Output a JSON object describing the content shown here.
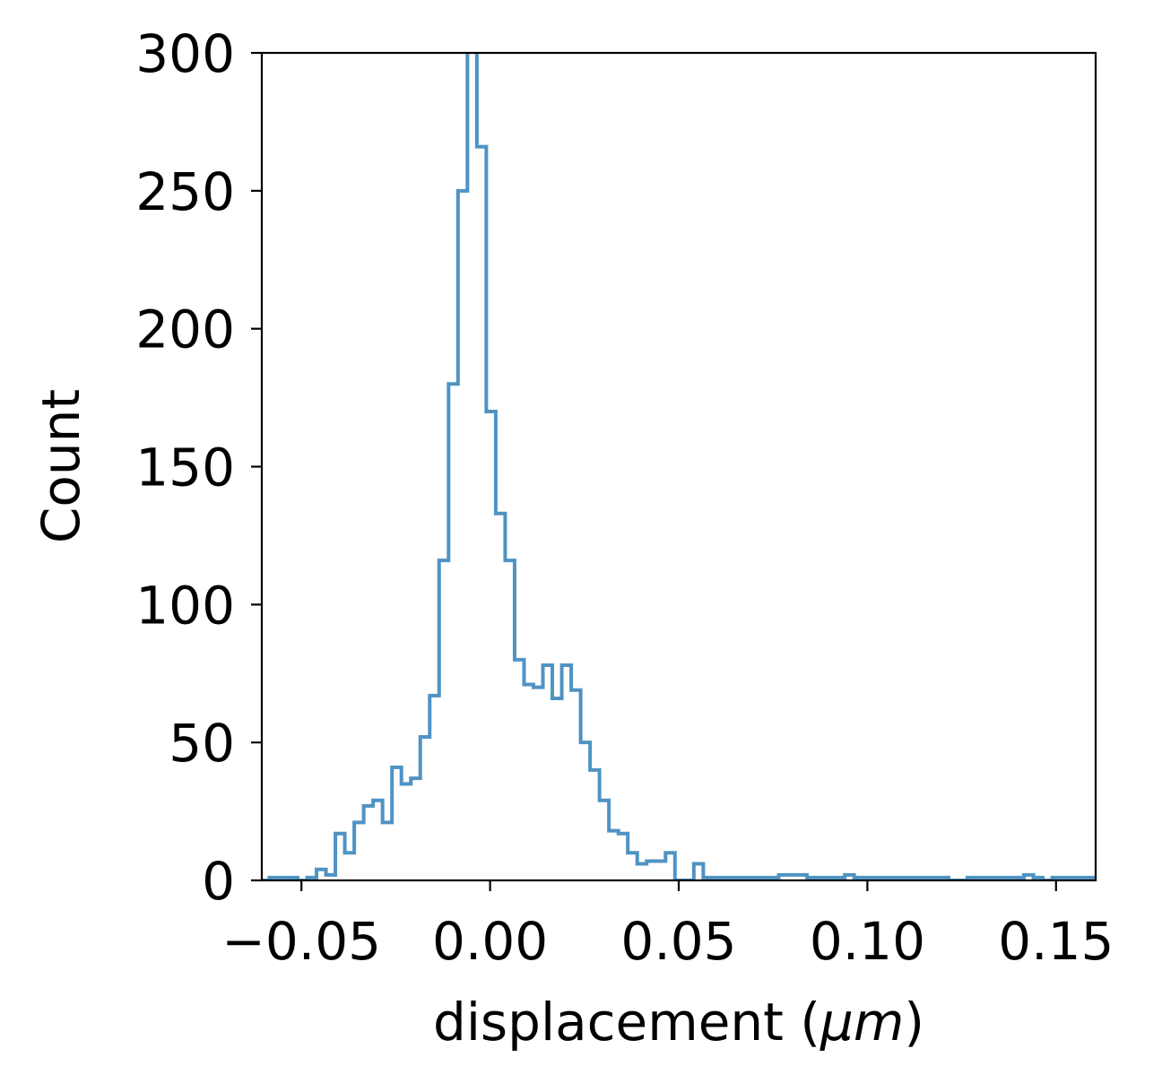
{
  "chart_data": {
    "type": "histogram",
    "histtype": "step",
    "xlabel": "displacement (",
    "xlabel_unit": "μm",
    "xlabel_close": ")",
    "ylabel": "Count",
    "xlim": [
      -0.0605,
      0.1605
    ],
    "ylim": [
      0,
      300
    ],
    "grid": false,
    "legend": null,
    "line_color": "#4f93c3",
    "xticks": [
      {
        "value": -0.05,
        "label": "−0.05"
      },
      {
        "value": 0.0,
        "label": "0.00"
      },
      {
        "value": 0.05,
        "label": "0.05"
      },
      {
        "value": 0.1,
        "label": "0.10"
      },
      {
        "value": 0.15,
        "label": "0.15"
      }
    ],
    "yticks": [
      {
        "value": 0,
        "label": "0"
      },
      {
        "value": 50,
        "label": "50"
      },
      {
        "value": 100,
        "label": "100"
      },
      {
        "value": 150,
        "label": "150"
      },
      {
        "value": 200,
        "label": "200"
      },
      {
        "value": 250,
        "label": "250"
      },
      {
        "value": 300,
        "label": "300"
      }
    ],
    "bin_start": -0.0735,
    "bin_width": 0.0025,
    "counts": [
      1,
      1,
      1,
      0,
      0,
      0,
      1,
      1,
      1,
      0,
      1,
      4,
      2,
      17,
      10,
      21,
      27,
      29,
      21,
      41,
      35,
      37,
      52,
      67,
      116,
      180,
      250,
      310,
      266,
      170,
      133,
      116,
      80,
      71,
      70,
      78,
      66,
      78,
      69,
      50,
      40,
      29,
      18,
      17,
      10,
      6,
      7,
      7,
      10,
      0,
      0,
      6,
      1,
      1,
      1,
      1,
      1,
      1,
      1,
      1,
      2,
      2,
      2,
      1,
      1,
      1,
      1,
      2,
      1,
      1,
      1,
      1,
      1,
      1,
      1,
      1,
      1,
      1,
      0,
      0,
      1,
      1,
      1,
      1,
      1,
      1,
      2,
      1,
      0,
      1,
      1,
      1,
      1,
      1,
      0,
      0,
      0,
      1
    ]
  }
}
